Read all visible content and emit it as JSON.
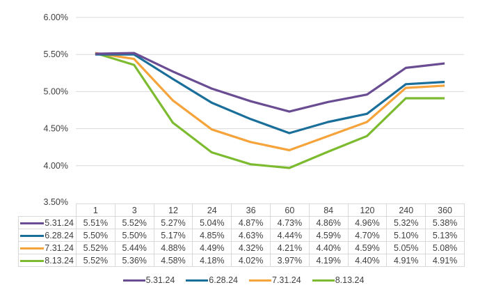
{
  "chart_data": {
    "type": "line",
    "title": "",
    "xlabel": "",
    "ylabel": "",
    "categories": [
      "1",
      "3",
      "12",
      "24",
      "36",
      "60",
      "84",
      "120",
      "240",
      "360"
    ],
    "ylim": [
      3.5,
      6.0
    ],
    "y_ticks": [
      "6.00%",
      "5.50%",
      "5.00%",
      "4.50%",
      "4.00%",
      "3.50%"
    ],
    "y_tick_values": [
      6.0,
      5.5,
      5.0,
      4.5,
      4.0,
      3.5
    ],
    "grid": true,
    "legend_position": "bottom",
    "data_table": true,
    "series": [
      {
        "name": "5.31.24",
        "color": "#6a4c93",
        "values": [
          5.51,
          5.52,
          5.27,
          5.04,
          4.87,
          4.73,
          4.86,
          4.96,
          5.32,
          5.38
        ],
        "labels": [
          "5.51%",
          "5.52%",
          "5.27%",
          "5.04%",
          "4.87%",
          "4.73%",
          "4.86%",
          "4.96%",
          "5.32%",
          "5.38%"
        ]
      },
      {
        "name": "6.28.24",
        "color": "#1a6e9a",
        "values": [
          5.5,
          5.5,
          5.17,
          4.85,
          4.63,
          4.44,
          4.59,
          4.7,
          5.1,
          5.13
        ],
        "labels": [
          "5.50%",
          "5.50%",
          "5.17%",
          "4.85%",
          "4.63%",
          "4.44%",
          "4.59%",
          "4.70%",
          "5.10%",
          "5.13%"
        ]
      },
      {
        "name": "7.31.24",
        "color": "#f5a33a",
        "values": [
          5.52,
          5.44,
          4.88,
          4.49,
          4.32,
          4.21,
          4.4,
          4.59,
          5.05,
          5.08
        ],
        "labels": [
          "5.52%",
          "5.44%",
          "4.88%",
          "4.49%",
          "4.32%",
          "4.21%",
          "4.40%",
          "4.59%",
          "5.05%",
          "5.08%"
        ]
      },
      {
        "name": "8.13.24",
        "color": "#7cbb2f",
        "values": [
          5.52,
          5.36,
          4.58,
          4.18,
          4.02,
          3.97,
          4.19,
          4.4,
          4.91,
          4.91
        ],
        "labels": [
          "5.52%",
          "5.36%",
          "4.58%",
          "4.18%",
          "4.02%",
          "3.97%",
          "4.19%",
          "4.40%",
          "4.91%",
          "4.91%"
        ]
      }
    ]
  }
}
